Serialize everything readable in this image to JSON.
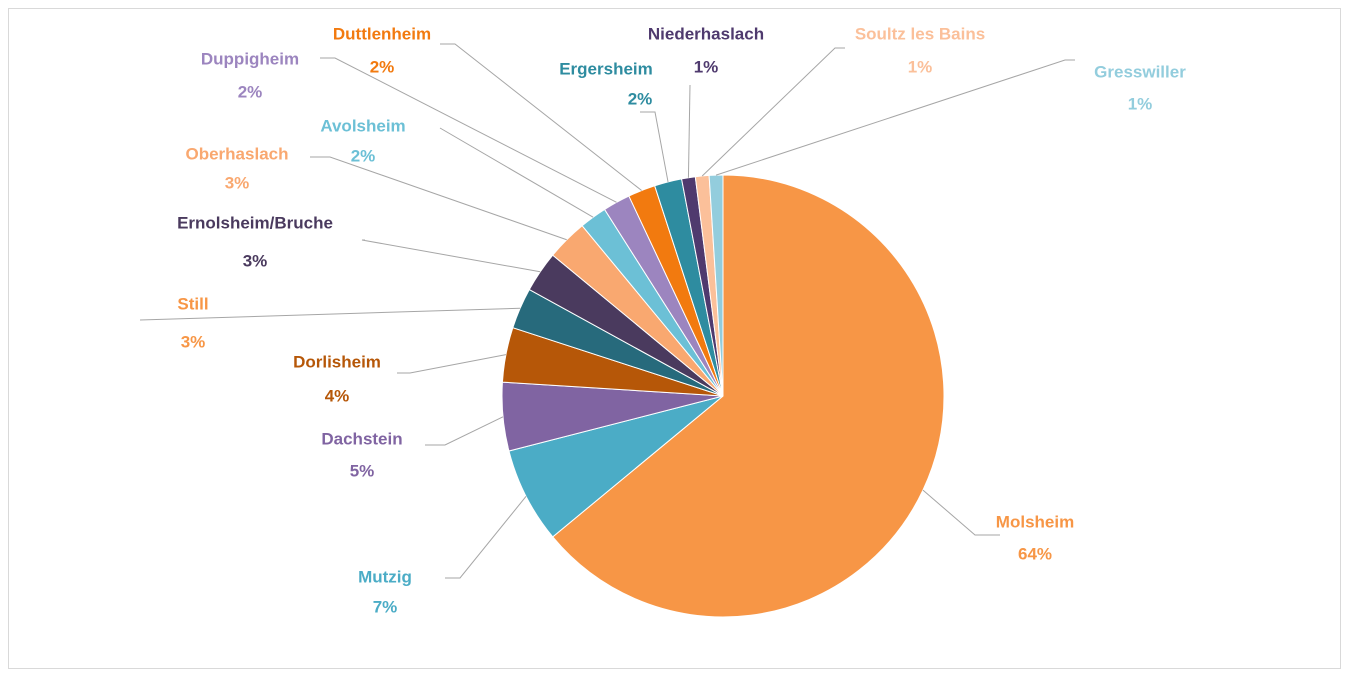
{
  "chart_data": {
    "type": "pie",
    "categories": [
      "Molsheim",
      "Mutzig",
      "Dachstein",
      "Dorlisheim",
      "Still",
      "Ernolsheim/Bruche",
      "Oberhaslach",
      "Avolsheim",
      "Duppigheim",
      "Duttlenheim",
      "Ergersheim",
      "Niederhaslach",
      "Soultz les Bains",
      "Gresswiller"
    ],
    "values": [
      64,
      7,
      5,
      4,
      3,
      3,
      3,
      2,
      2,
      2,
      2,
      1,
      1,
      1
    ],
    "value_labels": [
      "64%",
      "7%",
      "5%",
      "4%",
      "3%",
      "3%",
      "3%",
      "2%",
      "2%",
      "2%",
      "2%",
      "1%",
      "1%",
      "1%"
    ],
    "colors": [
      "#F79646",
      "#4BACC6",
      "#8064A2",
      "#B65708",
      "#276A7C",
      "#4A3A5E",
      "#F9A870",
      "#6CC0D6",
      "#9C85BF",
      "#F27A0F",
      "#2E8CA0",
      "#4F3A6E",
      "#FBC09A",
      "#93CDDD"
    ],
    "label_colors": [
      "#F79646",
      "#4BACC6",
      "#8064A2",
      "#B65708",
      "#F79646",
      "#4A3A5E",
      "#F9A870",
      "#6CC0D6",
      "#9C85BF",
      "#F27A0F",
      "#2E8CA0",
      "#4F3A6E",
      "#FBC09A",
      "#93CDDD"
    ]
  }
}
